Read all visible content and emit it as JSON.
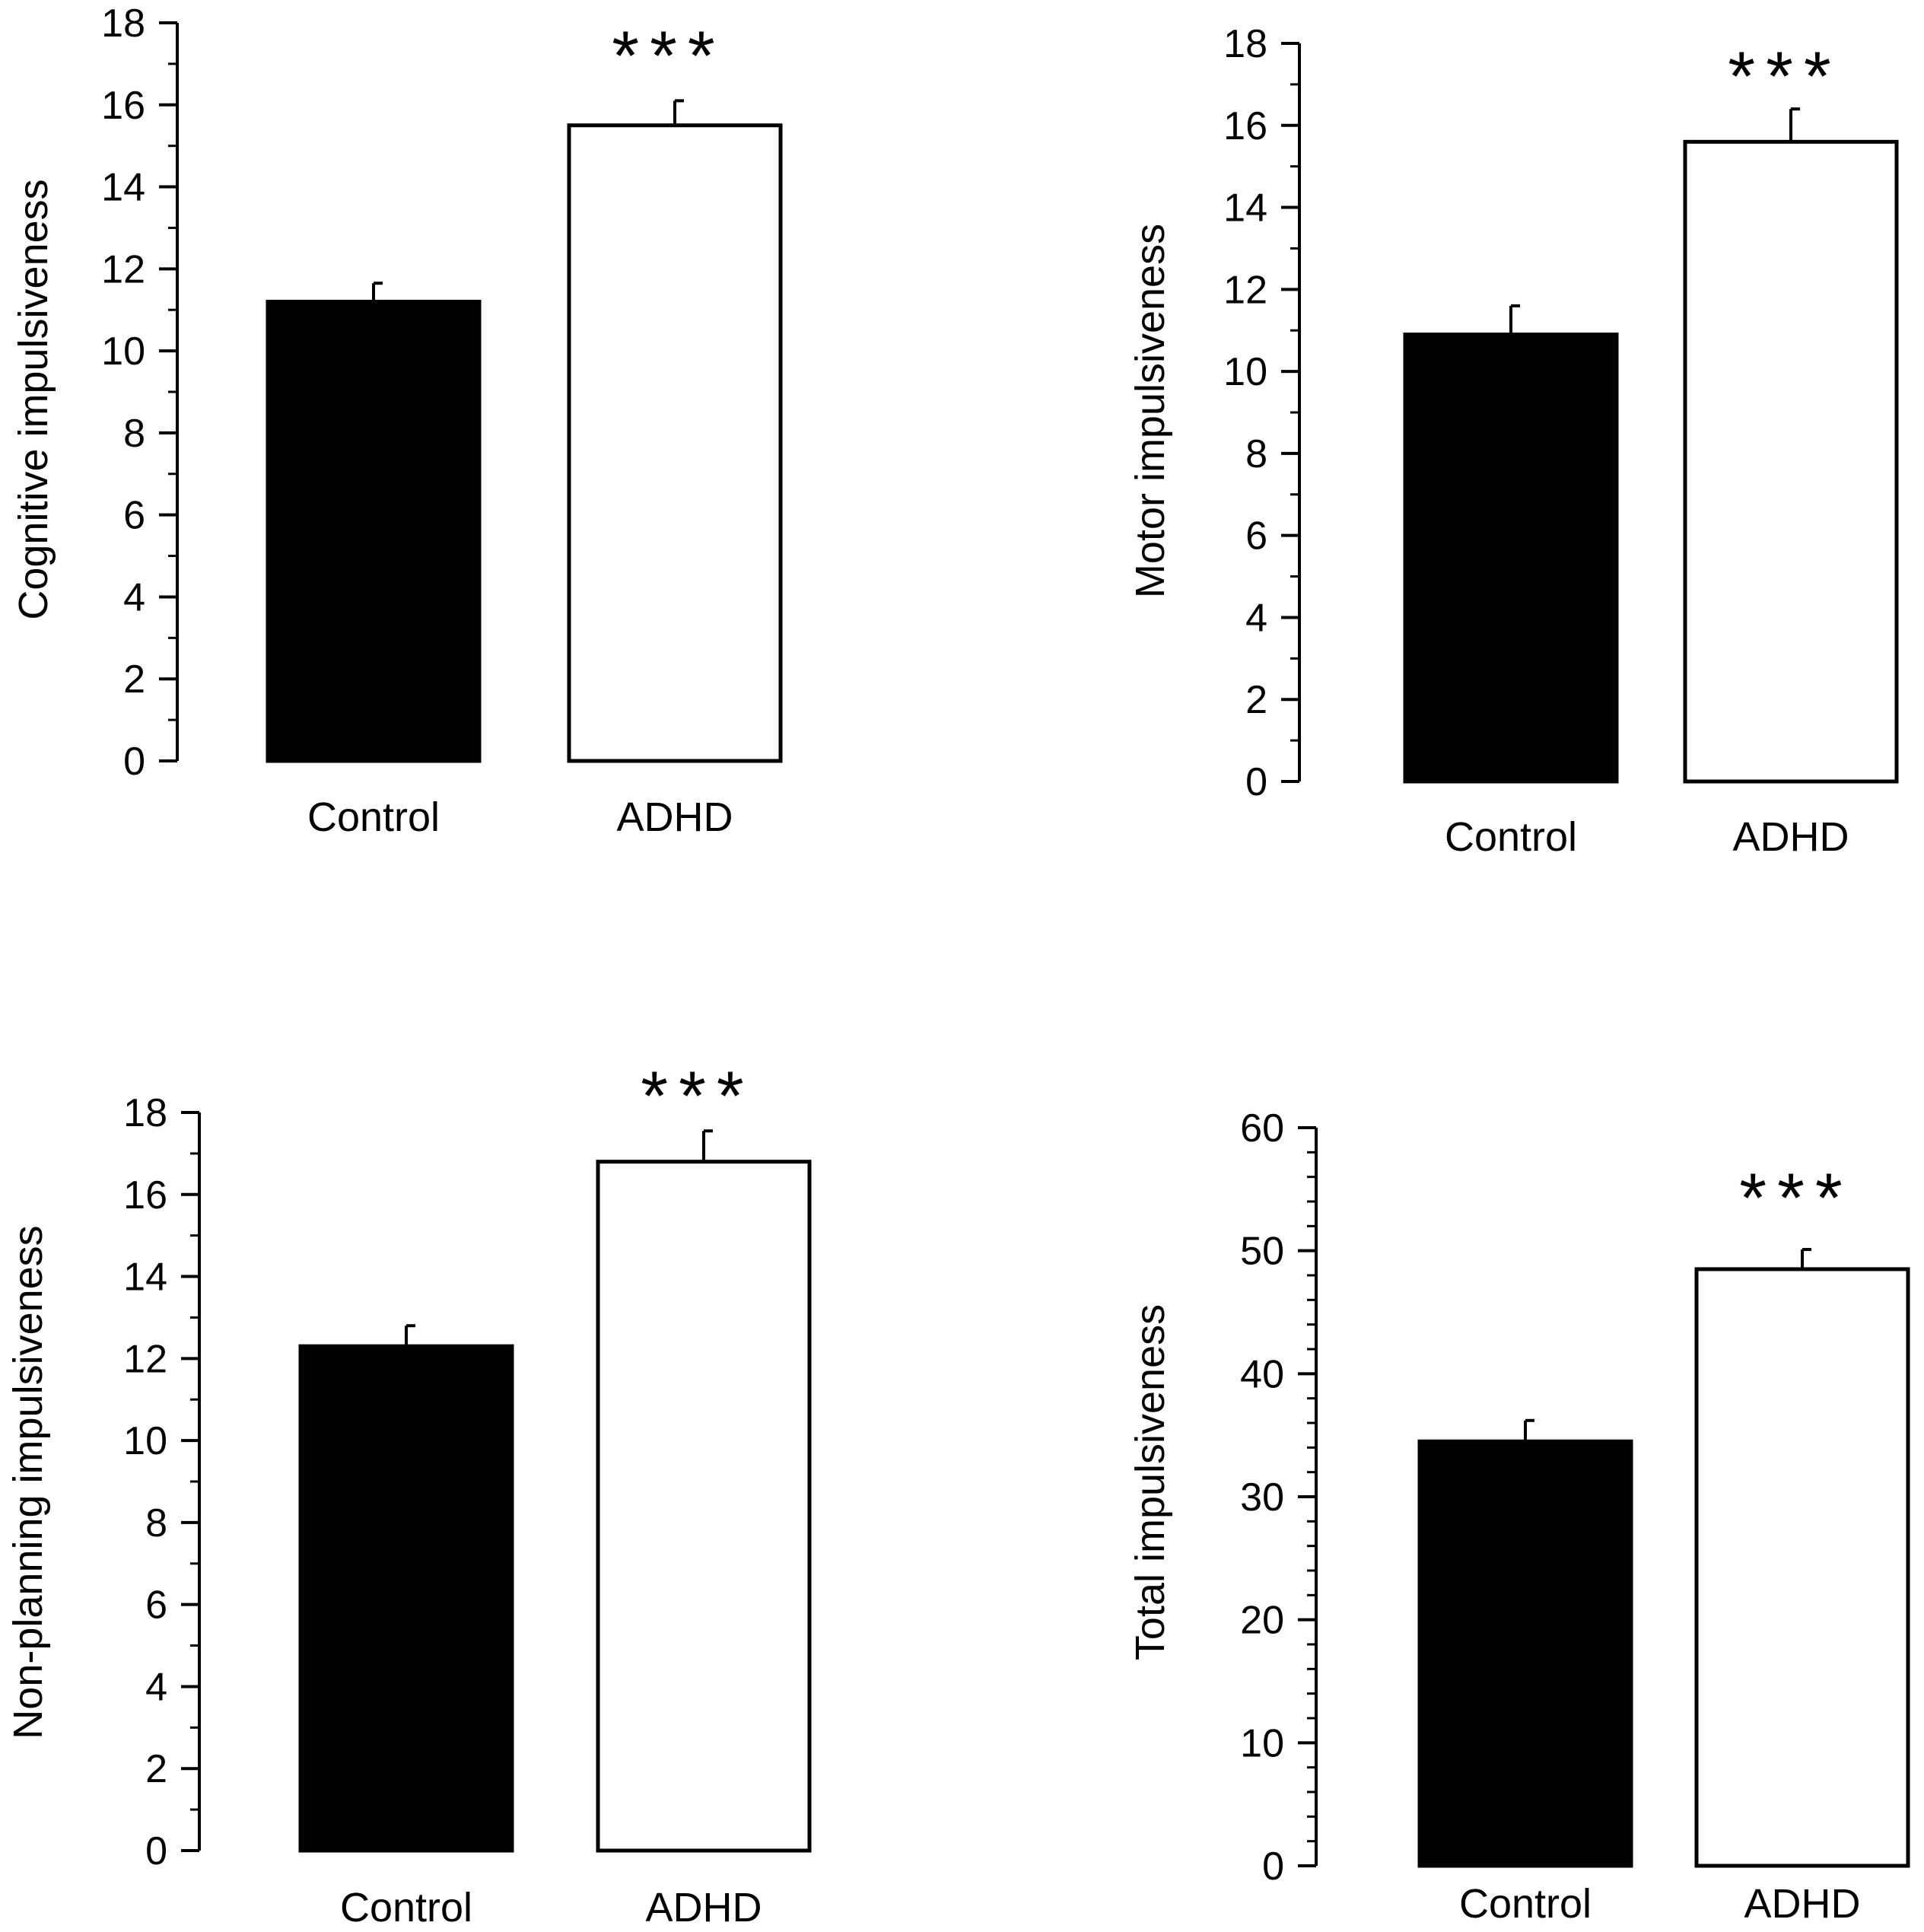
{
  "colors": {
    "control_fill": "#000000",
    "adhd_fill": "#ffffff",
    "stroke": "#000000"
  },
  "chart_data": [
    {
      "type": "bar",
      "ylabel": "Cognitive impulsiveness",
      "categories": [
        "Control",
        "ADHD"
      ],
      "values": [
        11.2,
        15.5
      ],
      "errors": [
        0.45,
        0.6
      ],
      "ylim": [
        0,
        18
      ],
      "yticks": [
        0,
        2,
        4,
        6,
        8,
        10,
        12,
        14,
        16,
        18
      ],
      "yticks_labels": [
        "0",
        "2",
        "4",
        "6",
        "8",
        "10",
        "12",
        "14",
        "16",
        "18"
      ],
      "minor_step": 1,
      "significance": "***"
    },
    {
      "type": "bar",
      "ylabel": "Motor impulsiveness",
      "categories": [
        "Control",
        "ADHD"
      ],
      "values": [
        10.9,
        15.6
      ],
      "errors": [
        0.7,
        0.8
      ],
      "ylim": [
        0,
        18
      ],
      "yticks": [
        0,
        2,
        4,
        6,
        8,
        10,
        12,
        14,
        16,
        18
      ],
      "yticks_labels": [
        "0",
        "2",
        "4",
        "6",
        "8",
        "10",
        "12",
        "14",
        "16",
        "18"
      ],
      "minor_step": 1,
      "significance": "***"
    },
    {
      "type": "bar",
      "ylabel": "Non-planning impulsiveness",
      "categories": [
        "Control",
        "ADHD"
      ],
      "values": [
        12.3,
        16.8
      ],
      "errors": [
        0.5,
        0.75
      ],
      "ylim": [
        0,
        18
      ],
      "yticks": [
        0,
        2,
        4,
        6,
        8,
        10,
        12,
        14,
        16,
        18
      ],
      "yticks_labels": [
        "0",
        "2",
        "4",
        "6",
        "8",
        "10",
        "12",
        "14",
        "16",
        "18"
      ],
      "minor_step": 1,
      "significance": "***"
    },
    {
      "type": "bar",
      "ylabel": "Total impulsiveness",
      "categories": [
        "Control",
        "ADHD"
      ],
      "values": [
        34.5,
        48.5
      ],
      "errors": [
        1.7,
        1.6
      ],
      "ylim": [
        0,
        60
      ],
      "yticks": [
        0,
        10,
        20,
        30,
        40,
        50,
        60
      ],
      "yticks_labels": [
        "0",
        "10",
        "20",
        "30",
        "40",
        "50",
        "60"
      ],
      "minor_step": 2,
      "significance": "***"
    }
  ]
}
